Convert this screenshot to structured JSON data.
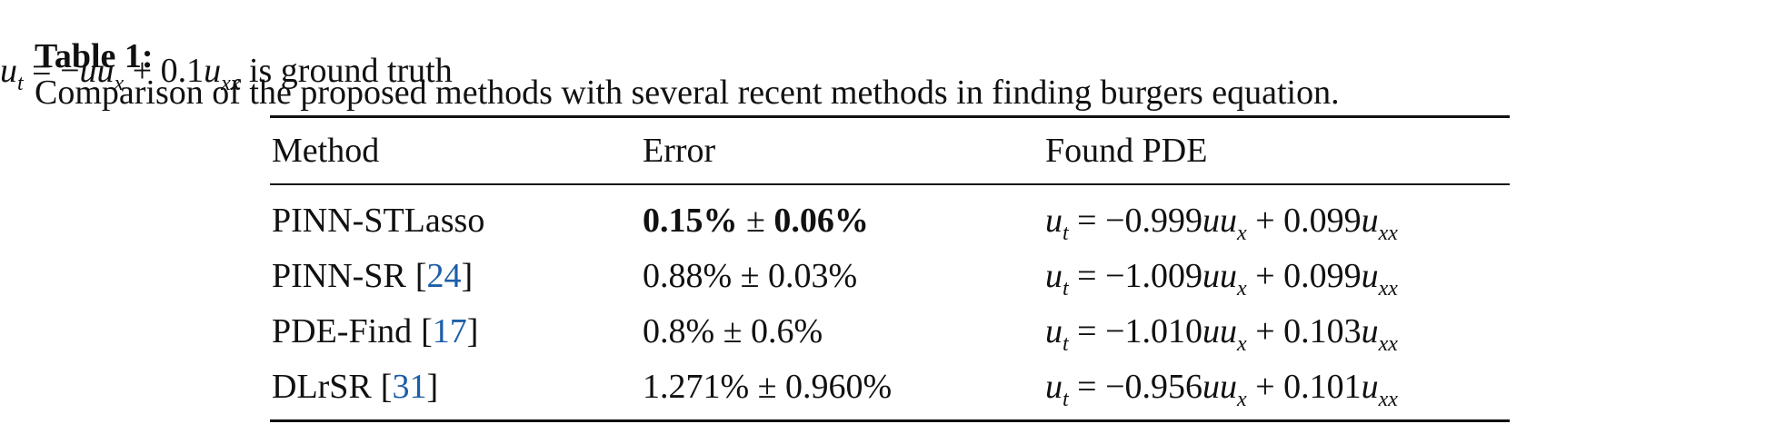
{
  "caption": {
    "label": "Table 1:",
    "text": "Comparison of the proposed methods with several recent methods in finding burgers equation.",
    "ground_truth": [
      {
        "t": "u",
        "style": "italic"
      },
      {
        "t": "t",
        "style": "sub"
      },
      {
        "t": " = −",
        "style": "normal"
      },
      {
        "t": "uu",
        "style": "italic"
      },
      {
        "t": "x",
        "style": "sub"
      },
      {
        "t": " + 0.1",
        "style": "normal"
      },
      {
        "t": "u",
        "style": "italic"
      },
      {
        "t": "xx",
        "style": "sub"
      },
      {
        "t": " is ground truth",
        "style": "normal"
      }
    ]
  },
  "table": {
    "headers": [
      "Method",
      "Error",
      "Found PDE"
    ],
    "rows": [
      {
        "method": "PINN-STLasso",
        "error": [
          {
            "t": "0.15%",
            "style": "bold"
          },
          {
            "t": " ± ",
            "style": "normal"
          },
          {
            "t": "0.06%",
            "style": "bold"
          }
        ],
        "pde": [
          {
            "t": "u",
            "style": "italic"
          },
          {
            "t": "t",
            "style": "sub"
          },
          {
            "t": " = −0.999",
            "style": "normal"
          },
          {
            "t": "uu",
            "style": "italic"
          },
          {
            "t": "x",
            "style": "sub"
          },
          {
            "t": " + 0.099",
            "style": "normal"
          },
          {
            "t": "u",
            "style": "italic"
          },
          {
            "t": "xx",
            "style": "sub"
          }
        ]
      },
      {
        "method": "PINN-SR",
        "ref": {
          "open": "[",
          "num": "24",
          "close": "]"
        },
        "error": [
          {
            "t": "0.88% ± 0.03%",
            "style": "normal"
          }
        ],
        "pde": [
          {
            "t": "u",
            "style": "italic"
          },
          {
            "t": "t",
            "style": "sub"
          },
          {
            "t": " = −1.009",
            "style": "normal"
          },
          {
            "t": "uu",
            "style": "italic"
          },
          {
            "t": "x",
            "style": "sub"
          },
          {
            "t": " + 0.099",
            "style": "normal"
          },
          {
            "t": "u",
            "style": "italic"
          },
          {
            "t": "xx",
            "style": "sub"
          }
        ]
      },
      {
        "method": "PDE-Find",
        "ref": {
          "open": "[",
          "num": "17",
          "close": "]"
        },
        "error": [
          {
            "t": "0.8% ± 0.6%",
            "style": "normal"
          }
        ],
        "pde": [
          {
            "t": "u",
            "style": "italic"
          },
          {
            "t": "t",
            "style": "sub"
          },
          {
            "t": " = −1.010",
            "style": "normal"
          },
          {
            "t": "uu",
            "style": "italic"
          },
          {
            "t": "x",
            "style": "sub"
          },
          {
            "t": " + 0.103",
            "style": "normal"
          },
          {
            "t": "u",
            "style": "italic"
          },
          {
            "t": "xx",
            "style": "sub"
          }
        ]
      },
      {
        "method": "DLrSR",
        "ref": {
          "open": "[",
          "num": "31",
          "close": "]"
        },
        "error": [
          {
            "t": "1.271% ± 0.960%",
            "style": "normal"
          }
        ],
        "pde": [
          {
            "t": "u",
            "style": "italic"
          },
          {
            "t": "t",
            "style": "sub"
          },
          {
            "t": " = −0.956",
            "style": "normal"
          },
          {
            "t": "uu",
            "style": "italic"
          },
          {
            "t": "x",
            "style": "sub"
          },
          {
            "t": " + 0.101",
            "style": "normal"
          },
          {
            "t": "u",
            "style": "italic"
          },
          {
            "t": "xx",
            "style": "sub"
          }
        ]
      }
    ]
  }
}
